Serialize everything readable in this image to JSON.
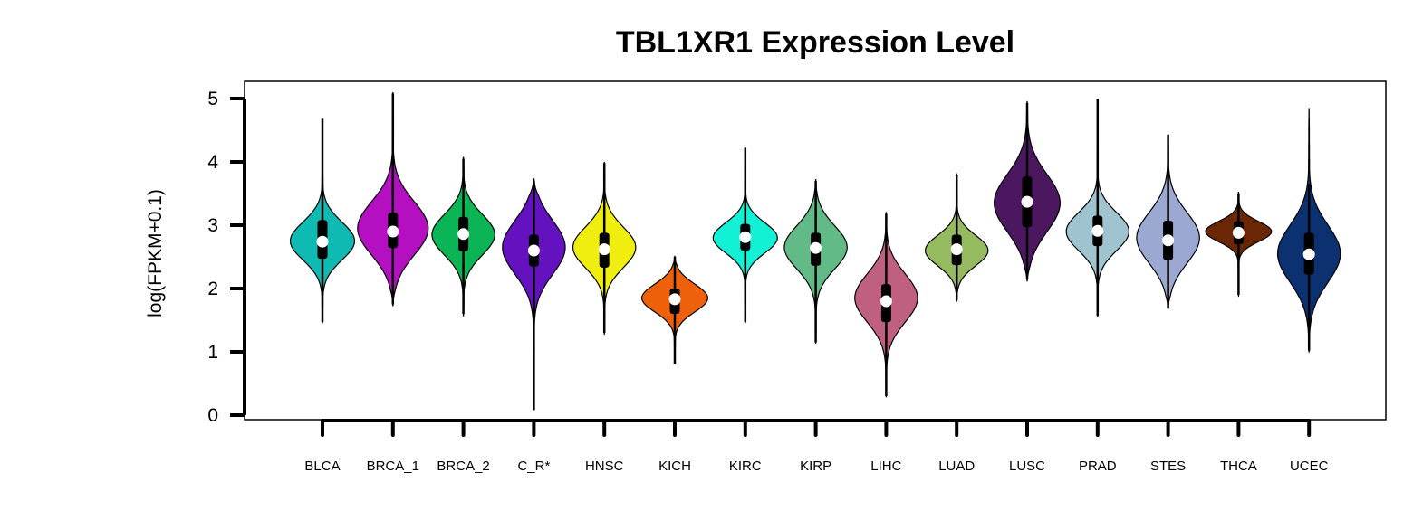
{
  "chart_data": {
    "type": "violin",
    "title": "TBL1XR1 Expression Level",
    "xlabel": "",
    "ylabel": "log(FPKM+0.1)",
    "ylim": [
      0,
      5
    ],
    "yticks": [
      0,
      1,
      2,
      3,
      4,
      5
    ],
    "grid": false,
    "categories": [
      "BLCA",
      "BRCA_1",
      "BRCA_2",
      "C_R*",
      "HNSC",
      "KICH",
      "KIRC",
      "KIRP",
      "LIHC",
      "LUAD",
      "LUSC",
      "PRAD",
      "STES",
      "THCA",
      "UCEC"
    ],
    "colors": [
      "#0fbab2",
      "#b40fc0",
      "#0bb555",
      "#6411c0",
      "#f0ee0f",
      "#ef600b",
      "#12f0d5",
      "#62bb86",
      "#bf6080",
      "#96ba60",
      "#4b1860",
      "#9fc3cf",
      "#9ba9d2",
      "#6b2606",
      "#0b3170"
    ],
    "series": [
      {
        "category": "BLCA",
        "min": 1.45,
        "max": 4.68,
        "q1": 2.47,
        "median": 2.74,
        "q3": 3.08,
        "whisker_low": 1.47,
        "whisker_high": 4.68,
        "peak": 2.75,
        "spread": 0.3,
        "width": 0.41
      },
      {
        "category": "BRCA_1",
        "min": 1.73,
        "max": 5.1,
        "q1": 2.64,
        "median": 2.9,
        "q3": 3.2,
        "whisker_low": 1.75,
        "whisker_high": 5.08,
        "peak": 2.95,
        "spread": 0.42,
        "width": 0.45
      },
      {
        "category": "BRCA_2",
        "min": 1.57,
        "max": 4.07,
        "q1": 2.59,
        "median": 2.86,
        "q3": 3.13,
        "whisker_low": 1.6,
        "whisker_high": 4.05,
        "peak": 2.85,
        "spread": 0.32,
        "width": 0.4
      },
      {
        "category": "C_R*",
        "min": 0.08,
        "max": 3.73,
        "q1": 2.35,
        "median": 2.6,
        "q3": 2.85,
        "whisker_low": 0.08,
        "whisker_high": 3.7,
        "peak": 2.65,
        "spread": 0.42,
        "width": 0.4
      },
      {
        "category": "HNSC",
        "min": 1.27,
        "max": 4.0,
        "q1": 2.33,
        "median": 2.62,
        "q3": 2.88,
        "whisker_low": 1.3,
        "whisker_high": 3.98,
        "peak": 2.65,
        "spread": 0.32,
        "width": 0.4
      },
      {
        "category": "KICH",
        "min": 0.8,
        "max": 2.51,
        "q1": 1.6,
        "median": 1.83,
        "q3": 2.0,
        "whisker_low": 0.8,
        "whisker_high": 2.5,
        "peak": 1.85,
        "spread": 0.22,
        "width": 0.42
      },
      {
        "category": "KIRC",
        "min": 1.45,
        "max": 4.23,
        "q1": 2.6,
        "median": 2.81,
        "q3": 3.02,
        "whisker_low": 1.47,
        "whisker_high": 4.22,
        "peak": 2.8,
        "spread": 0.24,
        "width": 0.41
      },
      {
        "category": "KIRP",
        "min": 1.13,
        "max": 3.72,
        "q1": 2.36,
        "median": 2.64,
        "q3": 2.88,
        "whisker_low": 1.15,
        "whisker_high": 3.7,
        "peak": 2.65,
        "spread": 0.34,
        "width": 0.4
      },
      {
        "category": "LIHC",
        "min": 0.28,
        "max": 3.2,
        "q1": 1.47,
        "median": 1.8,
        "q3": 2.07,
        "whisker_low": 0.3,
        "whisker_high": 3.18,
        "peak": 1.85,
        "spread": 0.38,
        "width": 0.4
      },
      {
        "category": "LUAD",
        "min": 1.8,
        "max": 3.82,
        "q1": 2.37,
        "median": 2.62,
        "q3": 2.85,
        "whisker_low": 1.82,
        "whisker_high": 3.8,
        "peak": 2.6,
        "spread": 0.24,
        "width": 0.4
      },
      {
        "category": "LUSC",
        "min": 2.12,
        "max": 4.95,
        "q1": 2.97,
        "median": 3.37,
        "q3": 3.77,
        "whisker_low": 2.15,
        "whisker_high": 4.93,
        "peak": 3.35,
        "spread": 0.45,
        "width": 0.42
      },
      {
        "category": "PRAD",
        "min": 1.55,
        "max": 5.0,
        "q1": 2.67,
        "median": 2.91,
        "q3": 3.15,
        "whisker_low": 1.57,
        "whisker_high": 5.0,
        "peak": 2.9,
        "spread": 0.3,
        "width": 0.4
      },
      {
        "category": "STES",
        "min": 1.68,
        "max": 4.45,
        "q1": 2.45,
        "median": 2.76,
        "q3": 3.07,
        "whisker_low": 1.7,
        "whisker_high": 4.43,
        "peak": 2.8,
        "spread": 0.4,
        "width": 0.4
      },
      {
        "category": "THCA",
        "min": 1.87,
        "max": 3.52,
        "q1": 2.7,
        "median": 2.88,
        "q3": 3.06,
        "whisker_low": 1.9,
        "whisker_high": 3.5,
        "peak": 2.9,
        "spread": 0.16,
        "width": 0.42
      },
      {
        "category": "UCEC",
        "min": 1.0,
        "max": 4.85,
        "q1": 2.22,
        "median": 2.54,
        "q3": 2.88,
        "whisker_low": 1.02,
        "whisker_high": 3.65,
        "peak": 2.55,
        "spread": 0.45,
        "width": 0.4
      }
    ]
  }
}
